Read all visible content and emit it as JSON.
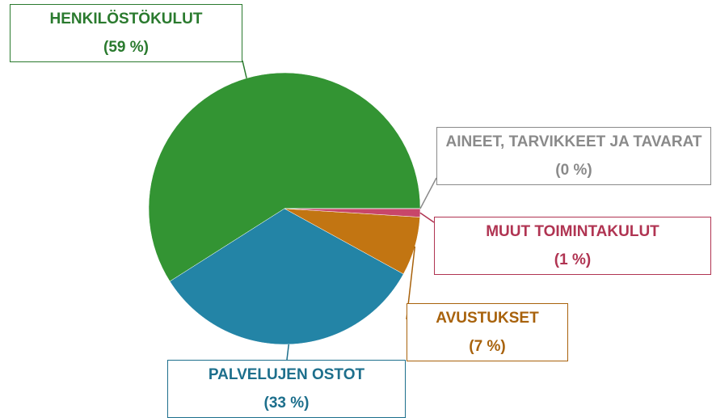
{
  "chart_data": {
    "type": "pie",
    "categories": [
      "HENKILÖSTÖKULUT",
      "PALVELUJEN OSTOT",
      "AVUSTUKSET",
      "MUUT TOIMINTAKULUT",
      "AINEET, TARVIKKEET JA TAVARAT"
    ],
    "values": [
      59,
      33,
      7,
      1,
      0
    ],
    "value_labels": [
      "(59 %)",
      "(33 %)",
      "(7 %)",
      "(1 %)",
      "(0 %)"
    ],
    "colors": [
      "#339433",
      "#2384a6",
      "#c27512",
      "#c8466a",
      "#a8a8a8"
    ],
    "label_colors": [
      "#2a7a2e",
      "#1d6f8c",
      "#a8620c",
      "#b03452",
      "#8a8a8a"
    ]
  }
}
